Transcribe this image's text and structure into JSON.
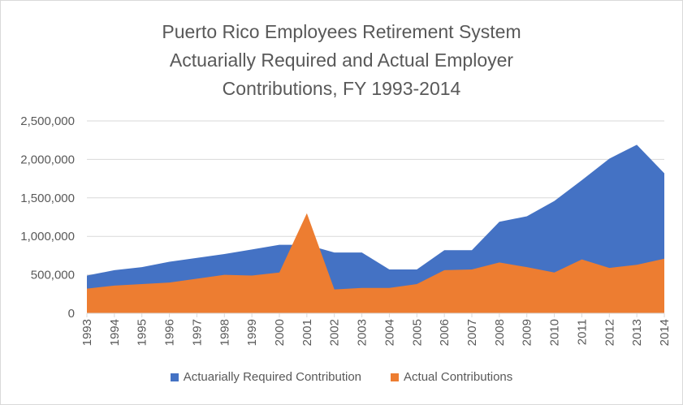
{
  "chart_data": {
    "type": "area",
    "title_lines": [
      "Puerto Rico Employees Retirement System",
      "Actuarially Required and Actual Employer",
      "Contributions, FY 1993-2014"
    ],
    "xlabel": "",
    "ylabel": "",
    "ylim": [
      0,
      2500000
    ],
    "y_ticks": [
      0,
      500000,
      1000000,
      1500000,
      2000000,
      2500000
    ],
    "y_tick_labels": [
      "0",
      "500,000",
      "1,000,000",
      "1,500,000",
      "2,000,000",
      "2,500,000"
    ],
    "grid": true,
    "legend_position": "bottom",
    "categories": [
      "1993",
      "1994",
      "1995",
      "1996",
      "1997",
      "1998",
      "1999",
      "2000",
      "2001",
      "2002",
      "2003",
      "2004",
      "2005",
      "2006",
      "2007",
      "2008",
      "2009",
      "2010",
      "2011",
      "2012",
      "2013",
      "2014"
    ],
    "series": [
      {
        "name": "Actuarially Required Contribution",
        "color": "#4472c4",
        "values": [
          490000,
          560000,
          600000,
          670000,
          720000,
          770000,
          830000,
          890000,
          890000,
          790000,
          790000,
          570000,
          570000,
          820000,
          820000,
          1190000,
          1260000,
          1460000,
          1730000,
          2010000,
          2190000,
          1820000
        ]
      },
      {
        "name": "Actual Contributions",
        "color": "#ed7d31",
        "values": [
          320000,
          360000,
          380000,
          400000,
          450000,
          500000,
          490000,
          530000,
          1300000,
          310000,
          330000,
          330000,
          380000,
          560000,
          570000,
          660000,
          600000,
          530000,
          700000,
          590000,
          630000,
          710000
        ]
      }
    ]
  }
}
